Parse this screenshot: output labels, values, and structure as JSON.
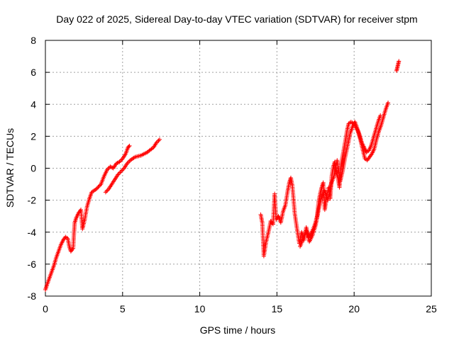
{
  "chart_data": {
    "type": "scatter",
    "title": "Day 022 of 2025, Sidereal Day-to-day VTEC variation (SDTVAR) for receiver stpm",
    "xlabel": "GPS time / hours",
    "ylabel": "SDTVAR / TECUs",
    "xlim": [
      0,
      25
    ],
    "ylim": [
      -8,
      8
    ],
    "xticks": [
      0,
      5,
      10,
      15,
      20,
      25
    ],
    "yticks": [
      -8,
      -6,
      -4,
      -2,
      0,
      2,
      4,
      6,
      8
    ],
    "grid": true,
    "marker": "plus",
    "color": "#ff0000",
    "series": [
      {
        "segments": [
          [
            [
              0.0,
              -7.6
            ],
            [
              0.1,
              -7.3
            ],
            [
              0.25,
              -6.9
            ],
            [
              0.4,
              -6.5
            ],
            [
              0.55,
              -6.1
            ],
            [
              0.7,
              -5.6
            ],
            [
              0.85,
              -5.2
            ],
            [
              1.0,
              -4.8
            ],
            [
              1.15,
              -4.5
            ],
            [
              1.3,
              -4.3
            ],
            [
              1.45,
              -4.4
            ],
            [
              1.55,
              -4.9
            ],
            [
              1.65,
              -5.2
            ],
            [
              1.8,
              -5.0
            ],
            [
              1.85,
              -4.1
            ],
            [
              1.9,
              -3.4
            ],
            [
              2.0,
              -3.1
            ],
            [
              2.15,
              -2.8
            ],
            [
              2.3,
              -2.6
            ],
            [
              2.4,
              -3.8
            ],
            [
              2.55,
              -3.2
            ],
            [
              2.7,
              -2.4
            ],
            [
              2.85,
              -1.9
            ],
            [
              3.0,
              -1.5
            ],
            [
              3.3,
              -1.3
            ],
            [
              3.6,
              -1.0
            ],
            [
              3.8,
              -0.5
            ],
            [
              4.0,
              -0.1
            ],
            [
              4.2,
              0.1
            ],
            [
              4.4,
              0.0
            ],
            [
              4.6,
              0.3
            ],
            [
              4.8,
              0.4
            ],
            [
              5.0,
              0.6
            ],
            [
              5.2,
              0.9
            ],
            [
              5.35,
              1.3
            ],
            [
              5.45,
              1.4
            ]
          ],
          [
            [
              3.9,
              -1.5
            ],
            [
              4.1,
              -1.3
            ],
            [
              4.3,
              -1.0
            ],
            [
              4.5,
              -0.7
            ],
            [
              4.7,
              -0.4
            ],
            [
              4.9,
              -0.2
            ],
            [
              5.1,
              0.0
            ],
            [
              5.3,
              0.3
            ],
            [
              5.5,
              0.5
            ],
            [
              5.8,
              0.7
            ],
            [
              6.2,
              0.8
            ],
            [
              6.6,
              1.0
            ],
            [
              7.0,
              1.3
            ],
            [
              7.2,
              1.6
            ],
            [
              7.4,
              1.8
            ]
          ],
          [
            [
              13.95,
              -2.9
            ],
            [
              14.05,
              -3.4
            ],
            [
              14.15,
              -5.5
            ],
            [
              14.3,
              -4.6
            ],
            [
              14.45,
              -4.0
            ],
            [
              14.6,
              -3.3
            ],
            [
              14.75,
              -3.5
            ],
            [
              14.85,
              -1.6
            ],
            [
              14.95,
              -3.2
            ],
            [
              15.1,
              -3.0
            ],
            [
              15.25,
              -3.4
            ],
            [
              15.4,
              -2.7
            ],
            [
              15.55,
              -2.3
            ],
            [
              15.7,
              -1.4
            ],
            [
              15.8,
              -0.9
            ],
            [
              15.9,
              -0.6
            ],
            [
              16.0,
              -1.1
            ],
            [
              16.15,
              -2.8
            ],
            [
              16.3,
              -3.8
            ],
            [
              16.45,
              -4.7
            ],
            [
              16.6,
              -4.0
            ],
            [
              16.75,
              -4.5
            ],
            [
              16.9,
              -3.7
            ],
            [
              17.05,
              -4.3
            ],
            [
              17.2,
              -4.1
            ],
            [
              17.35,
              -3.8
            ],
            [
              17.5,
              -3.4
            ],
            [
              17.6,
              -3.0
            ],
            [
              17.7,
              -2.1
            ],
            [
              17.8,
              -1.6
            ],
            [
              17.9,
              -1.2
            ],
            [
              18.0,
              -0.9
            ],
            [
              18.1,
              -2.6
            ],
            [
              18.2,
              -1.9
            ],
            [
              18.35,
              -1.2
            ],
            [
              18.45,
              -1.9
            ],
            [
              18.55,
              -0.5
            ],
            [
              18.65,
              0.1
            ],
            [
              18.75,
              0.4
            ],
            [
              18.85,
              -0.2
            ],
            [
              18.95,
              -0.6
            ],
            [
              19.05,
              -1.2
            ],
            [
              19.15,
              0.2
            ],
            [
              19.3,
              1.0
            ],
            [
              19.45,
              1.8
            ],
            [
              19.55,
              2.4
            ],
            [
              19.65,
              2.8
            ],
            [
              19.8,
              2.9
            ],
            [
              19.95,
              2.8
            ],
            [
              20.1,
              2.6
            ],
            [
              20.25,
              2.3
            ],
            [
              20.4,
              1.8
            ],
            [
              20.55,
              1.2
            ],
            [
              20.7,
              0.6
            ],
            [
              20.85,
              0.5
            ],
            [
              21.0,
              0.7
            ],
            [
              21.15,
              0.9
            ],
            [
              21.3,
              1.2
            ],
            [
              21.45,
              1.8
            ],
            [
              21.6,
              2.3
            ],
            [
              21.75,
              2.7
            ],
            [
              21.9,
              3.2
            ],
            [
              22.05,
              3.7
            ],
            [
              22.2,
              4.1
            ]
          ],
          [
            [
              16.5,
              -4.9
            ],
            [
              16.7,
              -4.4
            ],
            [
              16.9,
              -3.9
            ],
            [
              17.1,
              -4.6
            ],
            [
              17.3,
              -4.2
            ],
            [
              17.5,
              -3.6
            ],
            [
              17.7,
              -2.6
            ],
            [
              17.9,
              -1.8
            ],
            [
              18.1,
              -1.4
            ],
            [
              18.3,
              -2.0
            ],
            [
              18.5,
              -1.0
            ],
            [
              18.7,
              -0.5
            ],
            [
              18.9,
              0.5
            ],
            [
              19.1,
              -0.8
            ],
            [
              19.25,
              -0.2
            ],
            [
              19.4,
              0.6
            ],
            [
              19.6,
              1.5
            ],
            [
              19.75,
              2.2
            ],
            [
              19.9,
              2.6
            ],
            [
              20.05,
              2.9
            ],
            [
              20.2,
              2.5
            ],
            [
              20.35,
              2.1
            ],
            [
              20.5,
              1.6
            ],
            [
              20.65,
              1.3
            ],
            [
              20.8,
              1.0
            ],
            [
              20.95,
              1.1
            ],
            [
              21.1,
              1.4
            ],
            [
              21.25,
              1.9
            ],
            [
              21.4,
              2.4
            ],
            [
              21.55,
              2.9
            ],
            [
              21.7,
              3.3
            ]
          ],
          [
            [
              22.75,
              6.1
            ],
            [
              22.8,
              6.3
            ],
            [
              22.85,
              6.5
            ],
            [
              22.9,
              6.7
            ]
          ]
        ]
      }
    ]
  }
}
